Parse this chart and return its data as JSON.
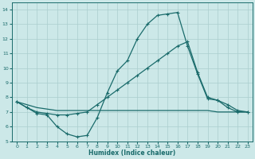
{
  "xlabel": "Humidex (Indice chaleur)",
  "xlim": [
    -0.5,
    23.5
  ],
  "ylim": [
    5,
    14.5
  ],
  "yticks": [
    5,
    6,
    7,
    8,
    9,
    10,
    11,
    12,
    13,
    14
  ],
  "xticks": [
    0,
    1,
    2,
    3,
    4,
    5,
    6,
    7,
    8,
    9,
    10,
    11,
    12,
    13,
    14,
    15,
    16,
    17,
    18,
    19,
    20,
    21,
    22,
    23
  ],
  "background_color": "#cce8e8",
  "grid_color": "#aacece",
  "line_color": "#1a6b6b",
  "line1_x": [
    0,
    1,
    2,
    3,
    4,
    5,
    6,
    7,
    8,
    9,
    10,
    11,
    12,
    13,
    14,
    15,
    16,
    17,
    18,
    19,
    20,
    21,
    22,
    23
  ],
  "line1_y": [
    7.7,
    7.3,
    6.9,
    6.8,
    6.0,
    5.5,
    5.3,
    5.4,
    6.6,
    8.3,
    9.8,
    10.5,
    12.0,
    13.0,
    13.6,
    13.7,
    13.8,
    11.5,
    9.6,
    7.9,
    7.8,
    7.3,
    7.0,
    7.0
  ],
  "line2_x": [
    0,
    1,
    2,
    3,
    4,
    5,
    6,
    7,
    8,
    9,
    10,
    11,
    12,
    13,
    14,
    15,
    16,
    17,
    18,
    19,
    20,
    21,
    22,
    23
  ],
  "line2_y": [
    7.7,
    7.3,
    7.0,
    6.9,
    6.8,
    6.8,
    6.9,
    7.0,
    7.5,
    8.0,
    8.5,
    9.0,
    9.5,
    10.0,
    10.5,
    11.0,
    11.5,
    11.8,
    9.7,
    8.0,
    7.8,
    7.5,
    7.1,
    7.0
  ],
  "line3_x": [
    0,
    1,
    2,
    3,
    4,
    5,
    6,
    7,
    8,
    9,
    10,
    11,
    12,
    13,
    14,
    15,
    16,
    17,
    18,
    19,
    20,
    21,
    22,
    23
  ],
  "line3_y": [
    7.7,
    7.5,
    7.3,
    7.2,
    7.1,
    7.1,
    7.1,
    7.1,
    7.1,
    7.1,
    7.1,
    7.1,
    7.1,
    7.1,
    7.1,
    7.1,
    7.1,
    7.1,
    7.1,
    7.1,
    7.0,
    7.0,
    7.0,
    7.0
  ]
}
